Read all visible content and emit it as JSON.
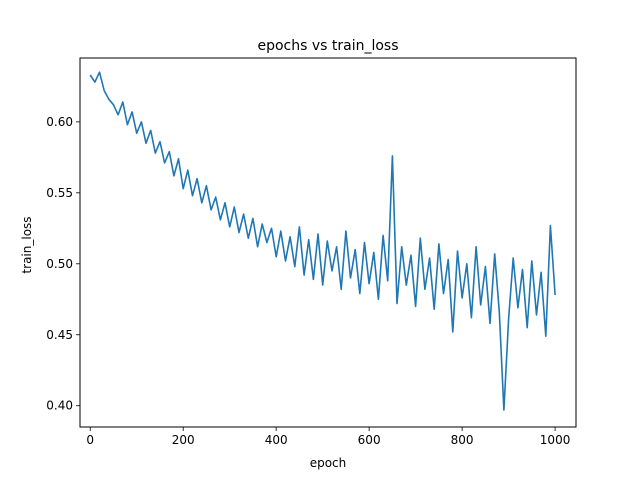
{
  "chart_data": {
    "type": "line",
    "title": "epochs vs train_loss",
    "xlabel": "epoch",
    "ylabel": "train_loss",
    "xlim": [
      -22,
      1045
    ],
    "ylim": [
      0.385,
      0.645
    ],
    "xticks": [
      0,
      200,
      400,
      600,
      800,
      1000
    ],
    "yticks": [
      0.4,
      0.45,
      0.5,
      0.55,
      0.6
    ],
    "xtick_labels": [
      "0",
      "200",
      "400",
      "600",
      "800",
      "1000"
    ],
    "ytick_labels": [
      "0.40",
      "0.45",
      "0.50",
      "0.55",
      "0.60"
    ],
    "grid": false,
    "series": [
      {
        "color": "#1f77b4",
        "x": [
          0,
          10,
          20,
          30,
          40,
          50,
          60,
          70,
          80,
          90,
          100,
          110,
          120,
          130,
          140,
          150,
          160,
          170,
          180,
          190,
          200,
          210,
          220,
          230,
          240,
          250,
          260,
          270,
          280,
          290,
          300,
          310,
          320,
          330,
          340,
          350,
          360,
          370,
          380,
          390,
          400,
          410,
          420,
          430,
          440,
          450,
          460,
          470,
          480,
          490,
          500,
          510,
          520,
          530,
          540,
          550,
          560,
          570,
          580,
          590,
          600,
          610,
          620,
          630,
          640,
          650,
          660,
          670,
          680,
          690,
          700,
          710,
          720,
          730,
          740,
          750,
          760,
          770,
          780,
          790,
          800,
          810,
          820,
          830,
          840,
          850,
          860,
          870,
          880,
          890,
          900,
          910,
          920,
          930,
          940,
          950,
          960,
          970,
          980,
          990,
          1000
        ],
        "y": [
          0.633,
          0.628,
          0.635,
          0.622,
          0.616,
          0.612,
          0.605,
          0.614,
          0.598,
          0.607,
          0.592,
          0.6,
          0.585,
          0.594,
          0.578,
          0.586,
          0.571,
          0.579,
          0.562,
          0.574,
          0.553,
          0.566,
          0.548,
          0.56,
          0.543,
          0.555,
          0.538,
          0.547,
          0.531,
          0.543,
          0.526,
          0.54,
          0.522,
          0.535,
          0.518,
          0.532,
          0.512,
          0.528,
          0.515,
          0.525,
          0.505,
          0.523,
          0.502,
          0.519,
          0.498,
          0.526,
          0.492,
          0.517,
          0.489,
          0.521,
          0.485,
          0.516,
          0.495,
          0.512,
          0.482,
          0.523,
          0.49,
          0.51,
          0.479,
          0.515,
          0.486,
          0.508,
          0.475,
          0.52,
          0.488,
          0.576,
          0.472,
          0.512,
          0.485,
          0.506,
          0.47,
          0.518,
          0.482,
          0.504,
          0.468,
          0.514,
          0.479,
          0.503,
          0.452,
          0.509,
          0.476,
          0.5,
          0.462,
          0.512,
          0.471,
          0.498,
          0.458,
          0.507,
          0.466,
          0.397,
          0.461,
          0.504,
          0.469,
          0.496,
          0.455,
          0.502,
          0.464,
          0.494,
          0.449,
          0.527,
          0.478
        ]
      }
    ]
  }
}
